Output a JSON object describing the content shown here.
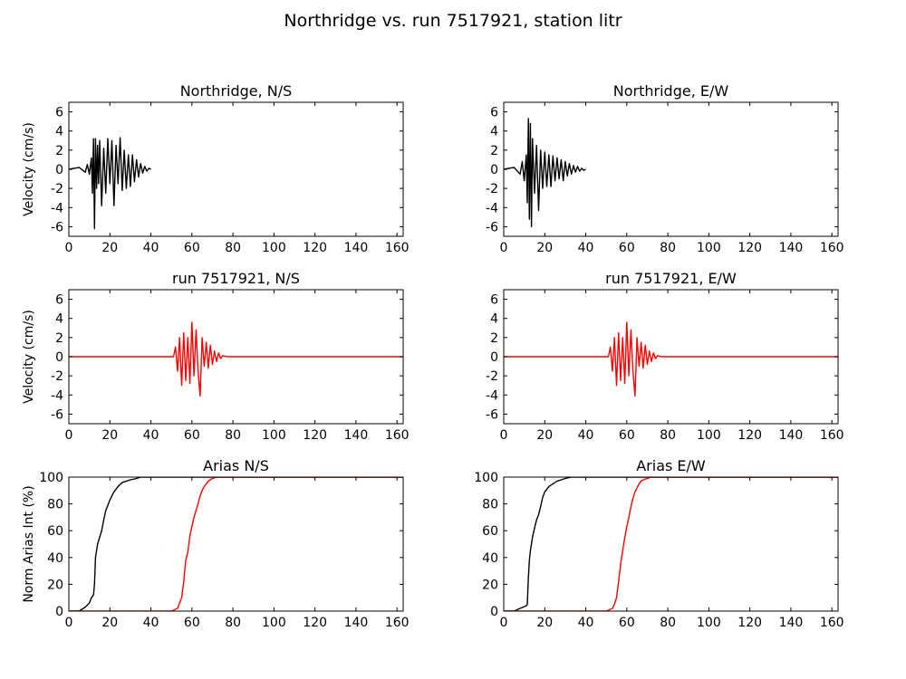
{
  "figure_title": "Northridge vs. run 7517921, station litr",
  "colors": {
    "observed": "#000000",
    "simulated": "#ff0000"
  },
  "chart_data": [
    {
      "type": "line",
      "title": "Northridge, N/S",
      "ylabel": "Velocity (cm/s)",
      "xlim": [
        0,
        163
      ],
      "ylim": [
        -7,
        7
      ],
      "xticks": [
        "0",
        "20",
        "40",
        "60",
        "80",
        "100",
        "120",
        "140",
        "160"
      ],
      "yticks": [
        "-6",
        "-4",
        "-2",
        "0",
        "2",
        "4",
        "6"
      ],
      "series": [
        {
          "color": "#000000",
          "x": [
            0,
            5,
            8,
            9,
            10,
            11,
            11.5,
            12,
            12.5,
            13,
            13.5,
            14,
            14.5,
            15,
            16,
            17,
            18,
            19,
            20,
            21,
            22,
            23,
            24,
            25,
            26,
            27,
            28,
            29,
            30,
            31,
            32,
            33,
            34,
            35,
            36,
            37,
            38,
            39,
            40
          ],
          "y": [
            0,
            0.2,
            -0.3,
            0.5,
            -0.5,
            1.2,
            -2.5,
            3.2,
            -6.2,
            3.2,
            -2.0,
            2.5,
            -1.5,
            3.0,
            -3.8,
            2.2,
            -2.5,
            3.2,
            -1.5,
            3.0,
            -3.8,
            2.5,
            -1.5,
            3.3,
            -2.2,
            2.0,
            -2.0,
            1.5,
            -1.8,
            1.5,
            -1.3,
            1.0,
            -0.8,
            0.6,
            -0.4,
            0.3,
            -0.2,
            0.1,
            0
          ]
        }
      ]
    },
    {
      "type": "line",
      "title": "Northridge, E/W",
      "ylabel": "",
      "xlim": [
        0,
        163
      ],
      "ylim": [
        -7,
        7
      ],
      "xticks": [
        "0",
        "20",
        "40",
        "60",
        "80",
        "100",
        "120",
        "140",
        "160"
      ],
      "yticks": [
        "-6",
        "-4",
        "-2",
        "0",
        "2",
        "4",
        "6"
      ],
      "series": [
        {
          "color": "#000000",
          "x": [
            0,
            5,
            8,
            9,
            10,
            11,
            11.5,
            12,
            12.5,
            13,
            13.5,
            14,
            15,
            16,
            17,
            18,
            19,
            20,
            21,
            22,
            23,
            24,
            25,
            26,
            27,
            28,
            29,
            30,
            31,
            32,
            33,
            34,
            35,
            36,
            37,
            38,
            39,
            40
          ],
          "y": [
            0,
            0.2,
            -0.5,
            0.8,
            -1.2,
            1.5,
            -3.5,
            5.3,
            -5.2,
            4.8,
            -6.0,
            3.2,
            -2.5,
            2.5,
            -4.3,
            2.0,
            -2.0,
            1.8,
            -1.8,
            1.5,
            -1.8,
            1.4,
            -1.2,
            1.2,
            -1.0,
            1.0,
            -1.2,
            0.8,
            -0.7,
            0.6,
            -0.5,
            0.4,
            -0.3,
            0.3,
            -0.2,
            0.1,
            -0.1,
            0
          ]
        }
      ]
    },
    {
      "type": "line",
      "title": "run 7517921, N/S",
      "ylabel": "Velocity (cm/s)",
      "xlim": [
        0,
        163
      ],
      "ylim": [
        -7,
        7
      ],
      "xticks": [
        "0",
        "20",
        "40",
        "60",
        "80",
        "100",
        "120",
        "140",
        "160"
      ],
      "yticks": [
        "-6",
        "-4",
        "-2",
        "0",
        "2",
        "4",
        "6"
      ],
      "series": [
        {
          "color": "#ff0000",
          "x": [
            0,
            51,
            52,
            53,
            54,
            55,
            56,
            57,
            58,
            59,
            60,
            61,
            62,
            63,
            64,
            65,
            66,
            67,
            68,
            69,
            70,
            71,
            72,
            73,
            74,
            75,
            77,
            163
          ],
          "y": [
            0,
            0,
            1.0,
            -1.5,
            2.0,
            -3.0,
            2.5,
            -2.5,
            2.0,
            -2.8,
            3.6,
            -2.0,
            2.8,
            -1.5,
            -4.1,
            2.0,
            -1.0,
            1.5,
            -1.2,
            1.2,
            -0.8,
            0.6,
            -0.5,
            0.4,
            -0.2,
            0.1,
            0,
            0
          ]
        }
      ]
    },
    {
      "type": "line",
      "title": "run 7517921, E/W",
      "ylabel": "",
      "xlim": [
        0,
        163
      ],
      "ylim": [
        -7,
        7
      ],
      "xticks": [
        "0",
        "20",
        "40",
        "60",
        "80",
        "100",
        "120",
        "140",
        "160"
      ],
      "yticks": [
        "-6",
        "-4",
        "-2",
        "0",
        "2",
        "4",
        "6"
      ],
      "series": [
        {
          "color": "#ff0000",
          "x": [
            0,
            51,
            52,
            53,
            54,
            55,
            56,
            57,
            58,
            59,
            60,
            61,
            62,
            63,
            64,
            65,
            66,
            67,
            68,
            69,
            70,
            71,
            72,
            73,
            74,
            75,
            77,
            163
          ],
          "y": [
            0,
            0,
            1.0,
            -1.5,
            2.0,
            -3.0,
            2.5,
            -2.5,
            2.0,
            -2.8,
            3.6,
            -2.0,
            2.8,
            -1.5,
            -4.1,
            2.0,
            -1.0,
            1.5,
            -1.2,
            1.2,
            -0.8,
            0.6,
            -0.5,
            0.4,
            -0.2,
            0.1,
            0,
            0
          ]
        }
      ]
    },
    {
      "type": "line",
      "title": "Arias N/S",
      "ylabel": "Norm Arias Int (%)",
      "xlim": [
        0,
        163
      ],
      "ylim": [
        0,
        100
      ],
      "xticks": [
        "0",
        "20",
        "40",
        "60",
        "80",
        "100",
        "120",
        "140",
        "160"
      ],
      "yticks": [
        "0",
        "20",
        "40",
        "60",
        "80",
        "100"
      ],
      "series": [
        {
          "color": "#000000",
          "x": [
            0,
            5,
            8,
            10,
            11,
            12,
            12.5,
            13,
            13.5,
            14,
            15,
            16,
            17,
            18,
            19,
            20,
            21,
            22,
            24,
            26,
            28,
            30,
            33,
            35,
            38,
            163
          ],
          "y": [
            0,
            0,
            3,
            6,
            10,
            12,
            20,
            40,
            45,
            50,
            55,
            60,
            68,
            75,
            79,
            83,
            86,
            89,
            93,
            96,
            97,
            98,
            99,
            100,
            100,
            100
          ]
        },
        {
          "color": "#ff0000",
          "x": [
            0,
            50,
            53,
            54,
            55,
            56,
            57,
            58,
            59,
            60,
            61,
            62,
            63,
            64,
            65,
            66,
            67,
            68,
            69,
            70,
            72,
            163
          ],
          "y": [
            0,
            0,
            2,
            6,
            10,
            22,
            38,
            44,
            56,
            63,
            70,
            75,
            80,
            86,
            90,
            93,
            95,
            97,
            98,
            99,
            100,
            100
          ]
        }
      ]
    },
    {
      "type": "line",
      "title": "Arias E/W",
      "ylabel": "",
      "xlim": [
        0,
        163
      ],
      "ylim": [
        0,
        100
      ],
      "xticks": [
        "0",
        "20",
        "40",
        "60",
        "80",
        "100",
        "120",
        "140",
        "160"
      ],
      "yticks": [
        "0",
        "20",
        "40",
        "60",
        "80",
        "100"
      ],
      "series": [
        {
          "color": "#000000",
          "x": [
            0,
            5,
            8,
            11,
            11.5,
            12,
            12.5,
            13,
            14,
            15,
            16,
            17,
            18,
            19,
            20,
            22,
            24,
            26,
            28,
            30,
            33,
            38,
            163
          ],
          "y": [
            0,
            0,
            2,
            4,
            5,
            25,
            38,
            45,
            55,
            62,
            68,
            72,
            78,
            85,
            89,
            93,
            95,
            97,
            98,
            99,
            100,
            100,
            100
          ]
        },
        {
          "color": "#ff0000",
          "x": [
            0,
            50,
            53,
            54,
            55,
            56,
            57,
            58,
            59,
            60,
            61,
            62,
            63,
            64,
            65,
            66,
            67,
            68,
            70,
            72,
            163
          ],
          "y": [
            0,
            0,
            2,
            5,
            10,
            22,
            35,
            45,
            55,
            63,
            70,
            78,
            84,
            89,
            92,
            95,
            97,
            98,
            99,
            100,
            100
          ]
        }
      ]
    }
  ]
}
